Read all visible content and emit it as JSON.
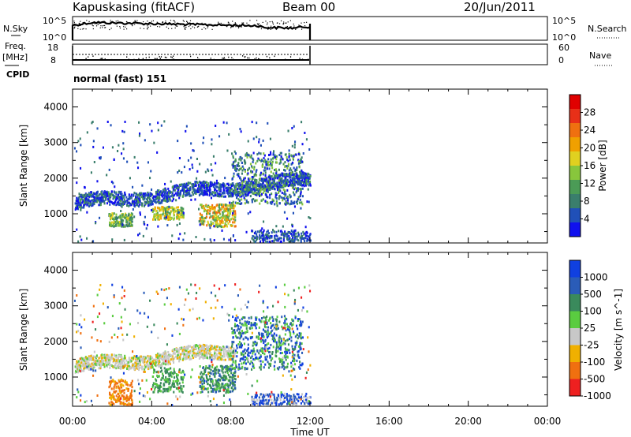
{
  "header": {
    "title": "Kapuskasing (fitACF)",
    "beam": "Beam 00",
    "date": "20/Jun/2011"
  },
  "strips": {
    "nsky_label": "N.Sky",
    "nsearch_label": "N.Search",
    "nsky_ticks": [
      "10^5",
      "10^0"
    ],
    "freq_label_1": "Freq.",
    "freq_label_2": "[MHz]",
    "freq_ticks": [
      "18",
      "8"
    ],
    "nave_label": "Nave",
    "nave_ticks": [
      "60",
      "0"
    ],
    "cpid_label": "CPID",
    "cpid_value": "normal (fast) 151"
  },
  "chart_data": [
    {
      "type": "heatmap",
      "name": "power",
      "ylabel": "Slant Range [km]",
      "ylim": [
        180,
        4500
      ],
      "yticks": [
        1000,
        2000,
        3000,
        4000
      ],
      "xlim": [
        0,
        24
      ],
      "data_extent_hours": [
        0,
        12
      ],
      "colorbar": {
        "label": "Power [dB]",
        "range": [
          0,
          32
        ],
        "ticks": [
          "4",
          "8",
          "12",
          "16",
          "20",
          "24",
          "28"
        ],
        "colors": [
          "#1010ee",
          "#2050b8",
          "#3a7e6c",
          "#4b9b56",
          "#88c63c",
          "#e0d020",
          "#f0a000",
          "#ef7010",
          "#e83018",
          "#e00000"
        ]
      },
      "bands": [
        {
          "x": [
            0.1,
            12.0
          ],
          "y": [
            1150,
            1700
          ],
          "trend": "rising to ~2000 km",
          "dominant": "blue"
        },
        {
          "x": [
            1.8,
            3.0
          ],
          "y": [
            700,
            1000
          ],
          "dominant": "green"
        },
        {
          "x": [
            4.0,
            5.5
          ],
          "y": [
            850,
            1150
          ],
          "dominant": "yellow-green"
        },
        {
          "x": [
            6.4,
            8.2
          ],
          "y": [
            650,
            1200
          ],
          "dominant": "green-orange"
        },
        {
          "x": [
            8.0,
            11.5
          ],
          "y": [
            1200,
            2700
          ],
          "dominant": "blue-green"
        },
        {
          "x": [
            9.0,
            12.0
          ],
          "y": [
            200,
            500
          ],
          "dominant": "blue"
        }
      ]
    },
    {
      "type": "heatmap",
      "name": "velocity",
      "ylabel": "Slant Range [km]",
      "ylim": [
        180,
        4500
      ],
      "yticks": [
        1000,
        2000,
        3000,
        4000
      ],
      "xlim": [
        0,
        24
      ],
      "data_extent_hours": [
        0,
        12
      ],
      "colorbar": {
        "label": "Velocity [m s^-1]",
        "ticks": [
          "1000",
          "500",
          "100",
          "25",
          "-25",
          "-100",
          "-500",
          "-1000"
        ],
        "colors": [
          "#1040e0",
          "#2a5cb8",
          "#3a8a5c",
          "#5acc40",
          "#c8c8c8",
          "#f0b000",
          "#f07010",
          "#ee2020"
        ]
      },
      "bands": [
        {
          "x": [
            0.1,
            8.0
          ],
          "y": [
            1150,
            1800
          ],
          "dominant": "grey (ground scatter)"
        },
        {
          "x": [
            1.8,
            3.0
          ],
          "y": [
            200,
            900
          ],
          "dominant": "orange"
        },
        {
          "x": [
            4.0,
            8.0
          ],
          "y": [
            550,
            1300
          ],
          "dominant": "green"
        },
        {
          "x": [
            8.0,
            11.6
          ],
          "y": [
            1200,
            2700
          ],
          "dominant": "blue-green"
        }
      ]
    }
  ],
  "xaxis": {
    "label": "Time UT",
    "ticks": [
      "00:00",
      "04:00",
      "08:00",
      "12:00",
      "16:00",
      "20:00",
      "00:00"
    ]
  },
  "colors": {
    "ink": "#000000",
    "background": "#ffffff"
  }
}
